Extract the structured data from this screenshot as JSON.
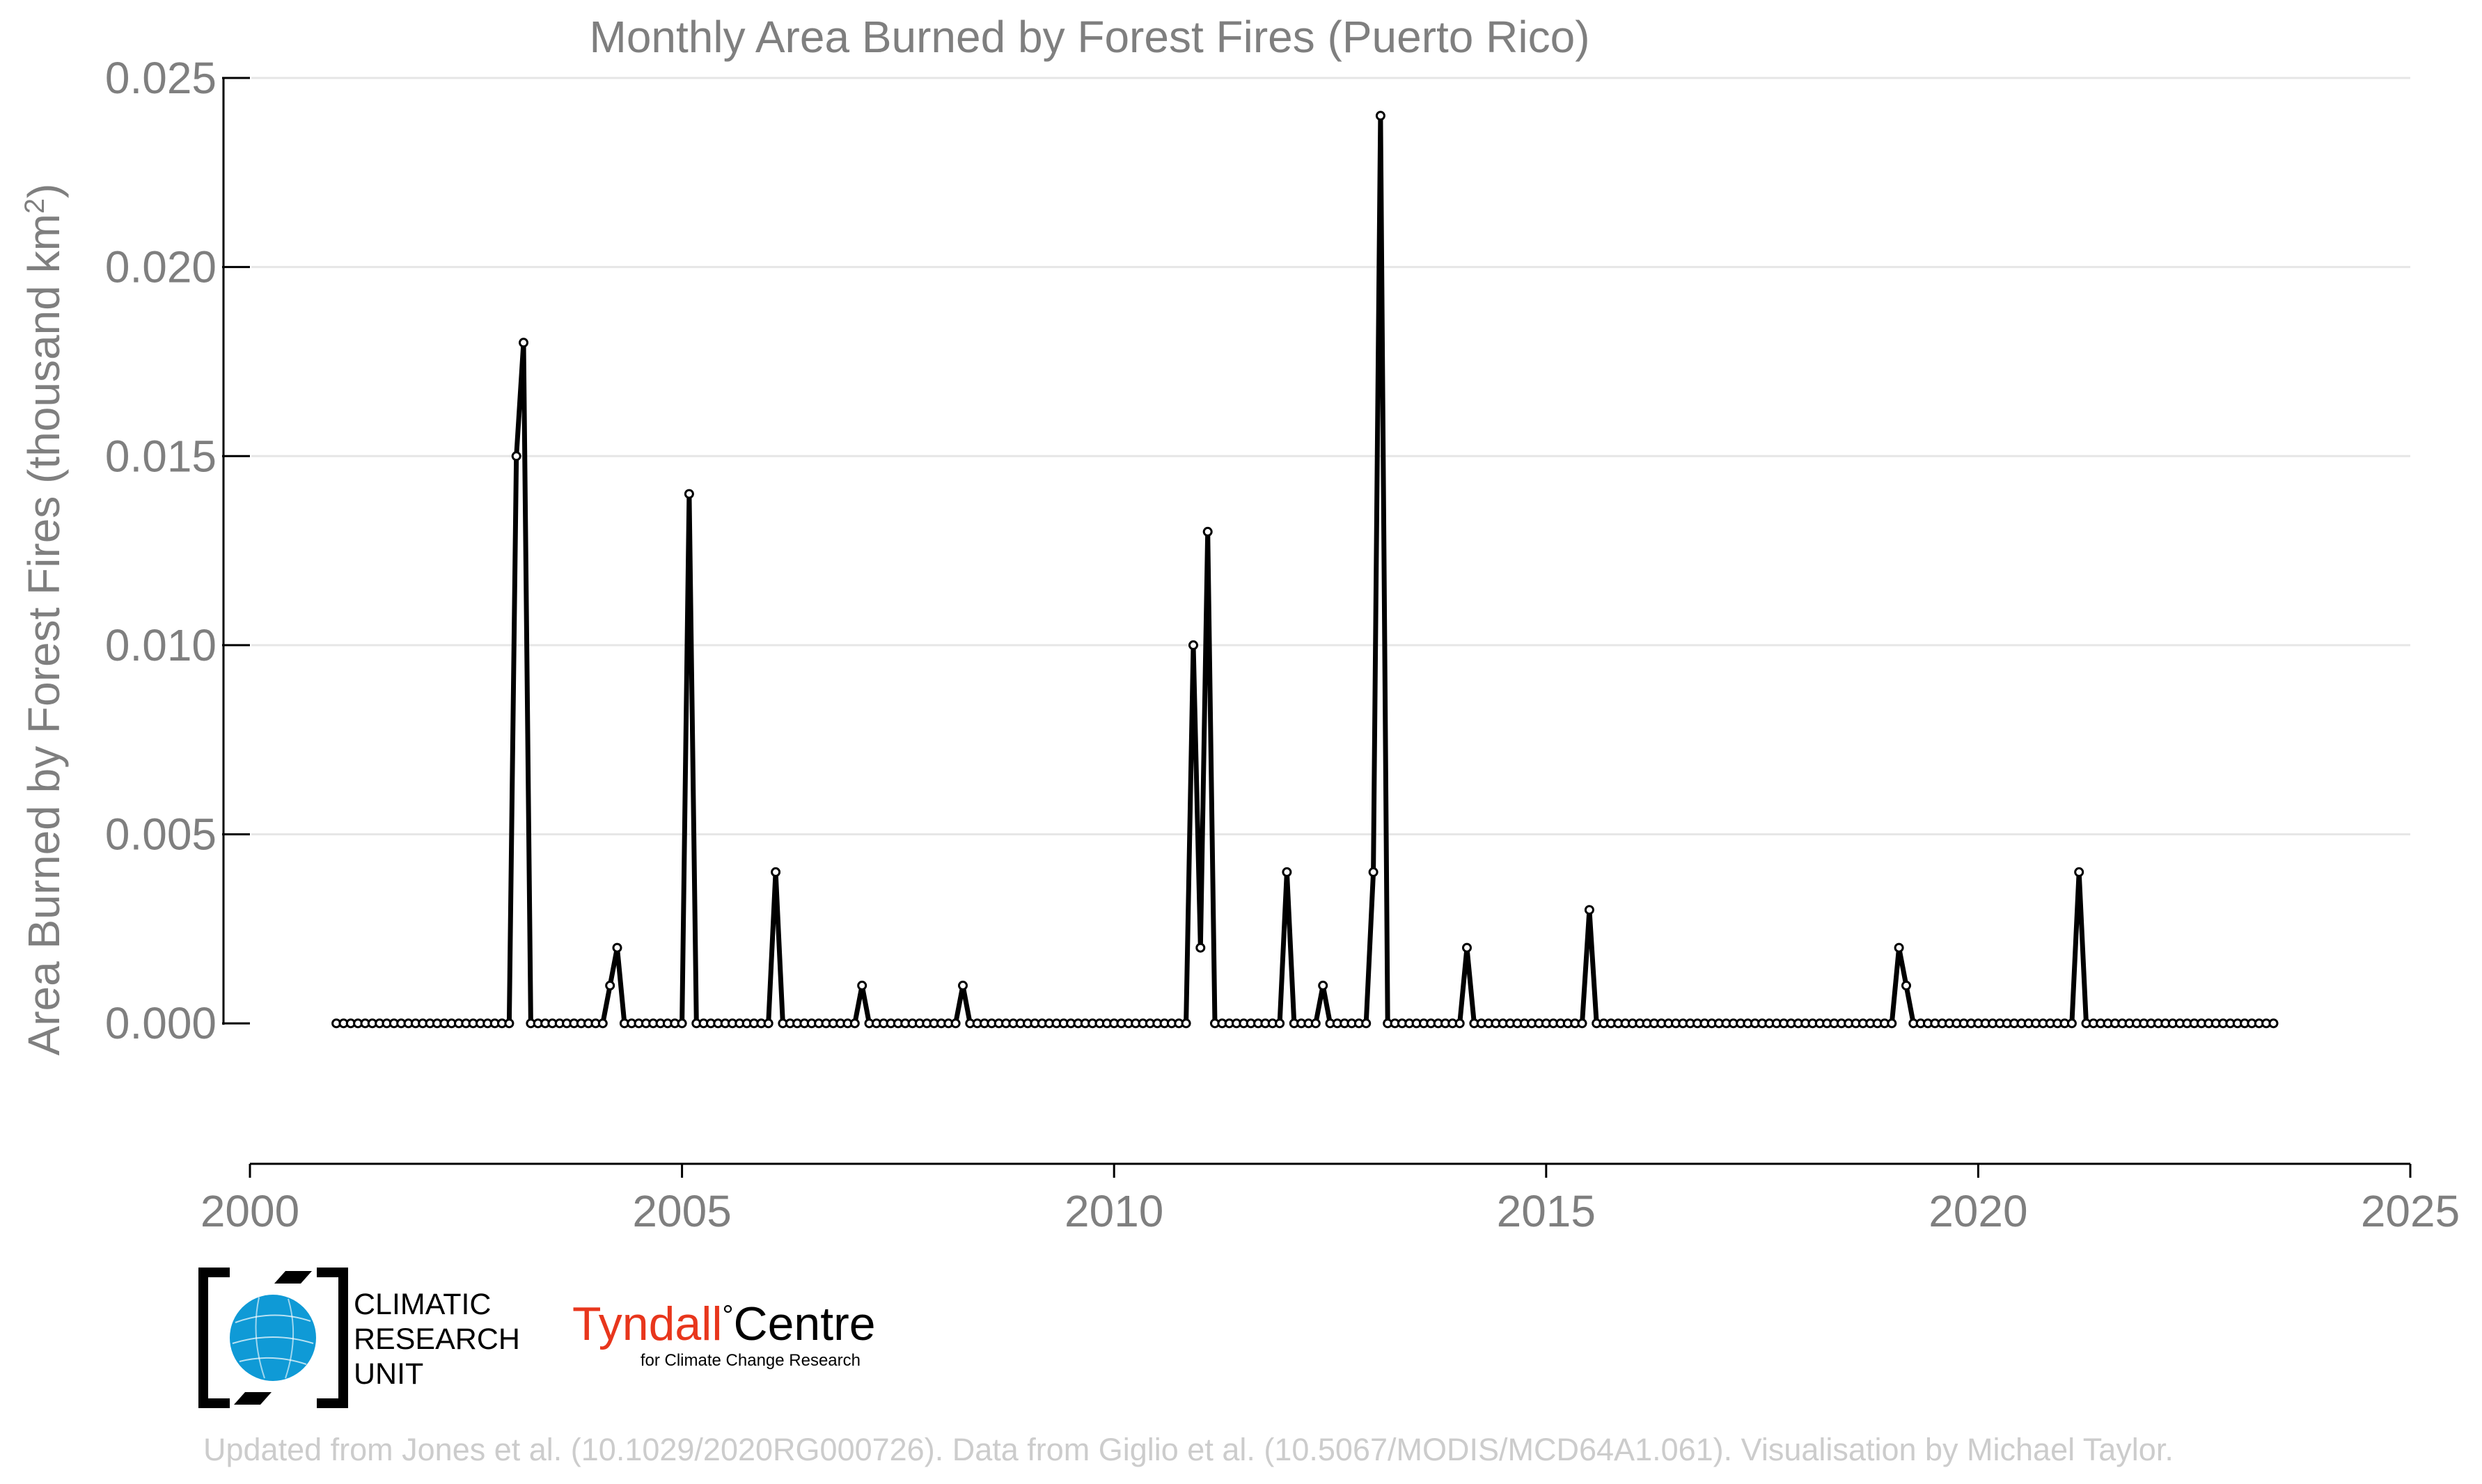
{
  "chart_data": {
    "type": "line",
    "title": "Monthly Area Burned by Forest Fires (Puerto Rico)",
    "xlabel": "",
    "ylabel": "Area Burned by Forest Fires (thousand km",
    "ylabel_superscript": "2",
    "ylabel_suffix": ")",
    "xlim": [
      2000,
      2025
    ],
    "ylim": [
      -0.0018,
      0.025
    ],
    "grid": true,
    "legend": "none",
    "x_ticks": [
      2000,
      2005,
      2010,
      2015,
      2020,
      2025
    ],
    "x_tick_labels": [
      "2000",
      "2005",
      "2010",
      "2015",
      "2020",
      "2025"
    ],
    "y_ticks": [
      0.0,
      0.005,
      0.01,
      0.015,
      0.02,
      0.025
    ],
    "y_tick_labels": [
      "0.000",
      "0.005",
      "0.010",
      "0.015",
      "0.020",
      "0.025"
    ],
    "series": [
      {
        "color": "#000000",
        "x_start": "2001-01",
        "points_per_year": 12,
        "values": [
          0,
          0,
          0,
          0,
          0,
          0,
          0,
          0,
          0,
          0,
          0,
          0,
          0,
          0,
          0,
          0,
          0,
          0,
          0,
          0,
          0,
          0,
          0,
          0,
          0,
          0.015,
          0.018,
          0,
          0,
          0,
          0,
          0,
          0,
          0,
          0,
          0,
          0,
          0,
          0.001,
          0.002,
          0,
          0,
          0,
          0,
          0,
          0,
          0,
          0,
          0,
          0.014,
          0,
          0,
          0,
          0,
          0,
          0,
          0,
          0,
          0,
          0,
          0,
          0.004,
          0,
          0,
          0,
          0,
          0,
          0,
          0,
          0,
          0,
          0,
          0,
          0.001,
          0,
          0,
          0,
          0,
          0,
          0,
          0,
          0,
          0,
          0,
          0,
          0,
          0,
          0.001,
          0,
          0,
          0,
          0,
          0,
          0,
          0,
          0,
          0,
          0,
          0,
          0,
          0,
          0,
          0,
          0,
          0,
          0,
          0,
          0,
          0,
          0,
          0,
          0,
          0,
          0,
          0,
          0,
          0,
          0,
          0,
          0.01,
          0.002,
          0.013,
          0,
          0,
          0,
          0,
          0,
          0,
          0,
          0,
          0,
          0,
          0.004,
          0,
          0,
          0,
          0,
          0.001,
          0,
          0,
          0,
          0,
          0,
          0,
          0.004,
          0.024,
          0,
          0,
          0,
          0,
          0,
          0,
          0,
          0,
          0,
          0,
          0,
          0.002,
          0,
          0,
          0,
          0,
          0,
          0,
          0,
          0,
          0,
          0,
          0,
          0,
          0,
          0,
          0,
          0,
          0.003,
          0,
          0,
          0,
          0,
          0,
          0,
          0,
          0,
          0,
          0,
          0,
          0,
          0,
          0,
          0,
          0,
          0,
          0,
          0,
          0,
          0,
          0,
          0,
          0,
          0,
          0,
          0,
          0,
          0,
          0,
          0,
          0,
          0,
          0,
          0,
          0,
          0,
          0,
          0,
          0,
          0,
          0,
          0.002,
          0.001,
          0,
          0,
          0,
          0,
          0,
          0,
          0,
          0,
          0,
          0,
          0,
          0,
          0,
          0,
          0,
          0,
          0,
          0,
          0,
          0,
          0,
          0,
          0,
          0.004,
          0,
          0,
          0,
          0,
          0,
          0,
          0,
          0,
          0,
          0,
          0,
          0,
          0,
          0,
          0,
          0,
          0,
          0,
          0,
          0,
          0,
          0,
          0,
          0,
          0,
          0,
          0
        ]
      }
    ]
  },
  "logos": {
    "cru_line1": "CLIMATIC",
    "cru_line2": "RESEARCH",
    "cru_line3": "UNIT",
    "tyndall_name": "Tyndall",
    "tyndall_degree": "°",
    "tyndall_centre": "Centre",
    "tyndall_subtitle": "for Climate Change Research",
    "cru_blue": "#0f9ad6",
    "tyndall_red": "#e8361c"
  },
  "footer": {
    "credit": "Updated from Jones et al. (10.1029/2020RG000726). Data from Giglio et al. (10.5067/MODIS/MCD64A1.061). Visualisation by Michael Taylor."
  }
}
